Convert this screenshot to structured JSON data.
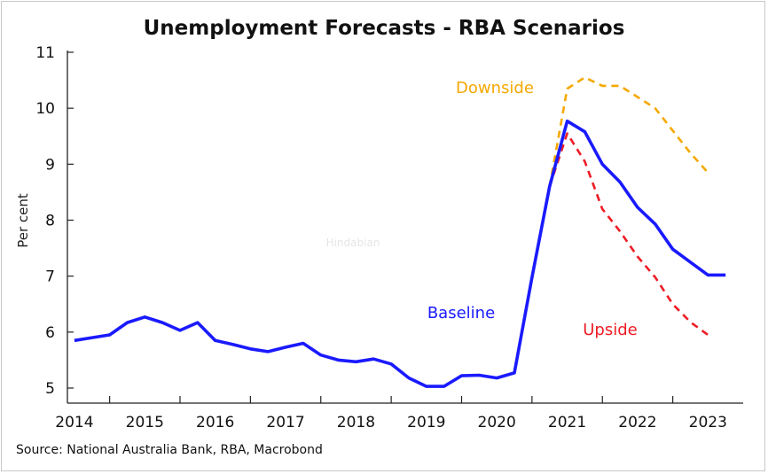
{
  "chart_data": {
    "type": "line",
    "title": "Unemployment Forecasts - RBA Scenarios",
    "ylabel": "Per cent",
    "xlabel": "",
    "ylim": [
      5,
      11
    ],
    "yticks": [
      5,
      6,
      7,
      8,
      9,
      10,
      11
    ],
    "xlim": [
      2013.9,
      2023.5
    ],
    "year_ticks": [
      "2014",
      "2015",
      "2016",
      "2017",
      "2018",
      "2019",
      "2020",
      "2021",
      "2022",
      "2023"
    ],
    "grid": false,
    "legend": "inline labels",
    "source": "Source: National Australia Bank, RBA, Macrobond",
    "watermark": "Hindabian",
    "series": [
      {
        "name": "Baseline",
        "color": "#1a1aff",
        "style": "solid",
        "label_position": "mid-right",
        "x": [
          2014.0,
          2014.25,
          2014.5,
          2014.75,
          2015.0,
          2015.25,
          2015.5,
          2015.75,
          2016.0,
          2016.25,
          2016.5,
          2016.75,
          2017.0,
          2017.25,
          2017.5,
          2017.75,
          2018.0,
          2018.25,
          2018.5,
          2018.75,
          2019.0,
          2019.25,
          2019.5,
          2019.75,
          2020.0,
          2020.25,
          2020.5,
          2020.75,
          2021.0,
          2021.25,
          2021.5,
          2021.75,
          2022.0,
          2022.25,
          2022.5,
          2022.75,
          2023.0,
          2023.25
        ],
        "values": [
          5.85,
          5.9,
          5.95,
          6.17,
          6.27,
          6.17,
          6.03,
          6.17,
          5.85,
          5.78,
          5.7,
          5.65,
          5.73,
          5.8,
          5.59,
          5.5,
          5.47,
          5.52,
          5.43,
          5.18,
          5.03,
          5.03,
          5.22,
          5.23,
          5.18,
          5.27,
          6.98,
          8.6,
          9.77,
          9.58,
          9.0,
          8.68,
          8.23,
          7.93,
          7.48,
          7.25,
          7.02,
          7.02
        ]
      },
      {
        "name": "Downside",
        "color": "#f5a800",
        "style": "dashed",
        "label_position": "top",
        "x": [
          2020.75,
          2021.0,
          2021.25,
          2021.5,
          2021.75,
          2022.0,
          2022.25,
          2022.5,
          2022.75,
          2023.0
        ],
        "values": [
          8.6,
          10.35,
          10.55,
          10.4,
          10.4,
          10.2,
          10.0,
          9.6,
          9.2,
          8.85
        ]
      },
      {
        "name": "Upside",
        "color": "#ee1c25",
        "style": "dashed",
        "label_position": "lower-right",
        "x": [
          2020.75,
          2021.0,
          2021.25,
          2021.5,
          2021.75,
          2022.0,
          2022.25,
          2022.5,
          2022.75,
          2023.0
        ],
        "values": [
          8.6,
          9.55,
          9.05,
          8.2,
          7.8,
          7.35,
          6.98,
          6.5,
          6.18,
          5.95
        ]
      }
    ]
  }
}
